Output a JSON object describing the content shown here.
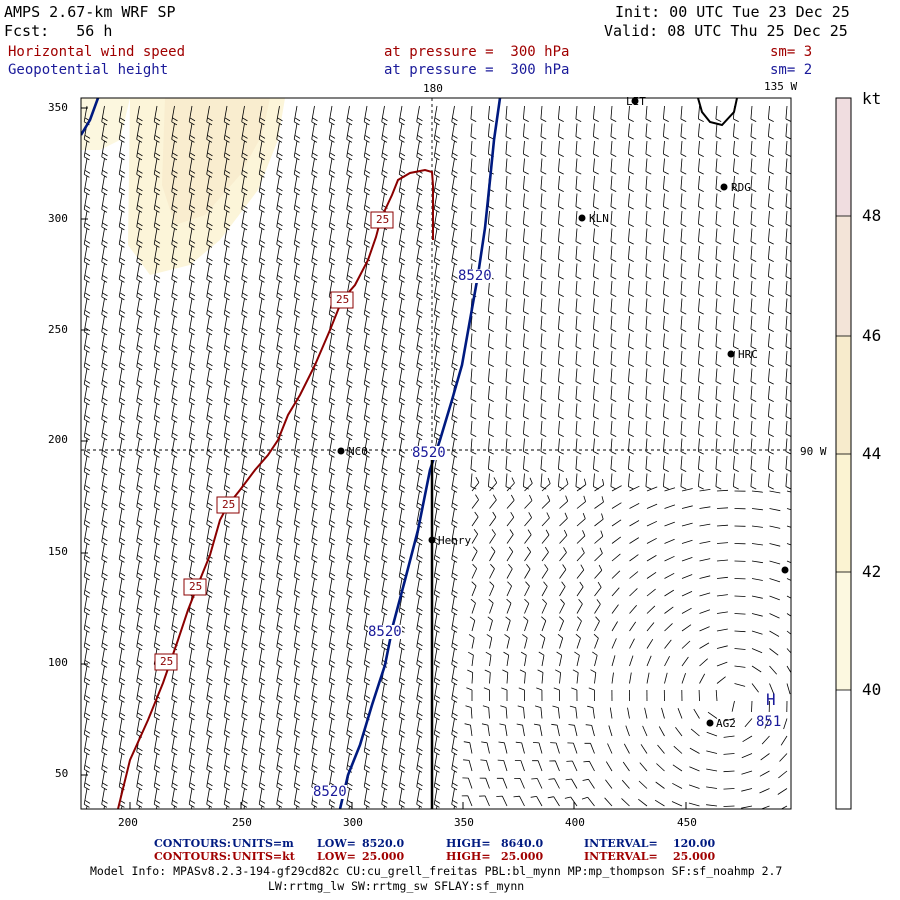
{
  "header": {
    "title": "AMPS 2.67-km WRF SP",
    "init": "Init: 00 UTC Tue 23 Dec 25",
    "fcst": "Fcst:   56 h",
    "valid": "Valid: 08 UTC Thu 25 Dec 25",
    "field1": "Horizontal wind speed",
    "field1_level": "at pressure =  300 hPa",
    "field1_sm": "sm= 3",
    "field2": "Geopotential height",
    "field2_level": "at pressure =  300 hPa",
    "field2_sm": "sm= 2"
  },
  "map": {
    "x_ticks": [
      "200",
      "250",
      "300",
      "350",
      "400",
      "450"
    ],
    "y_ticks": [
      "50",
      "100",
      "150",
      "200",
      "250",
      "300",
      "350"
    ],
    "meridian_labels": [
      "180",
      "135 W",
      "90 W"
    ],
    "stations": [
      "LIT",
      "RDG",
      "KLN",
      "HRC",
      "NCO",
      "Henry",
      "AG2"
    ],
    "contour_labels_height": [
      "8520",
      "8520",
      "8520",
      "8520"
    ],
    "contour_labels_wind": [
      "25",
      "25",
      "25",
      "25",
      "25"
    ],
    "high_marker": "H",
    "high_value": "851"
  },
  "colorbar": {
    "unit": "kt",
    "labels": [
      "48",
      "46",
      "44",
      "42",
      "40"
    ],
    "colors": [
      "#f0dde0",
      "#f3e4d8",
      "#f7ebcc",
      "#fbf3d2",
      "#fcf8e0",
      "#ffffff"
    ]
  },
  "footer": {
    "row1_a": "CONTOURS:",
    "row1_b": "UNITS=m",
    "row1_c": "LOW=",
    "row1_d": "8520.0",
    "row1_e": "HIGH=",
    "row1_f": "8640.0",
    "row1_g": "INTERVAL=",
    "row1_h": "120.00",
    "row2_a": "CONTOURS:",
    "row2_b": "UNITS=kt",
    "row2_c": "LOW=",
    "row2_d": "25.000",
    "row2_e": "HIGH=",
    "row2_f": "25.000",
    "row2_g": "INTERVAL=",
    "row2_h": "25.000",
    "model_info": "Model Info: MPASv8.2.3-194-gf29cd82c CU:cu_grell_freitas PBL:bl_mynn MP:mp_thompson SF:sf_noahmp 2.7",
    "model_info2": "LW:rrtmg_lw SW:rrtmg_sw SFLAY:sf_mynn"
  }
}
